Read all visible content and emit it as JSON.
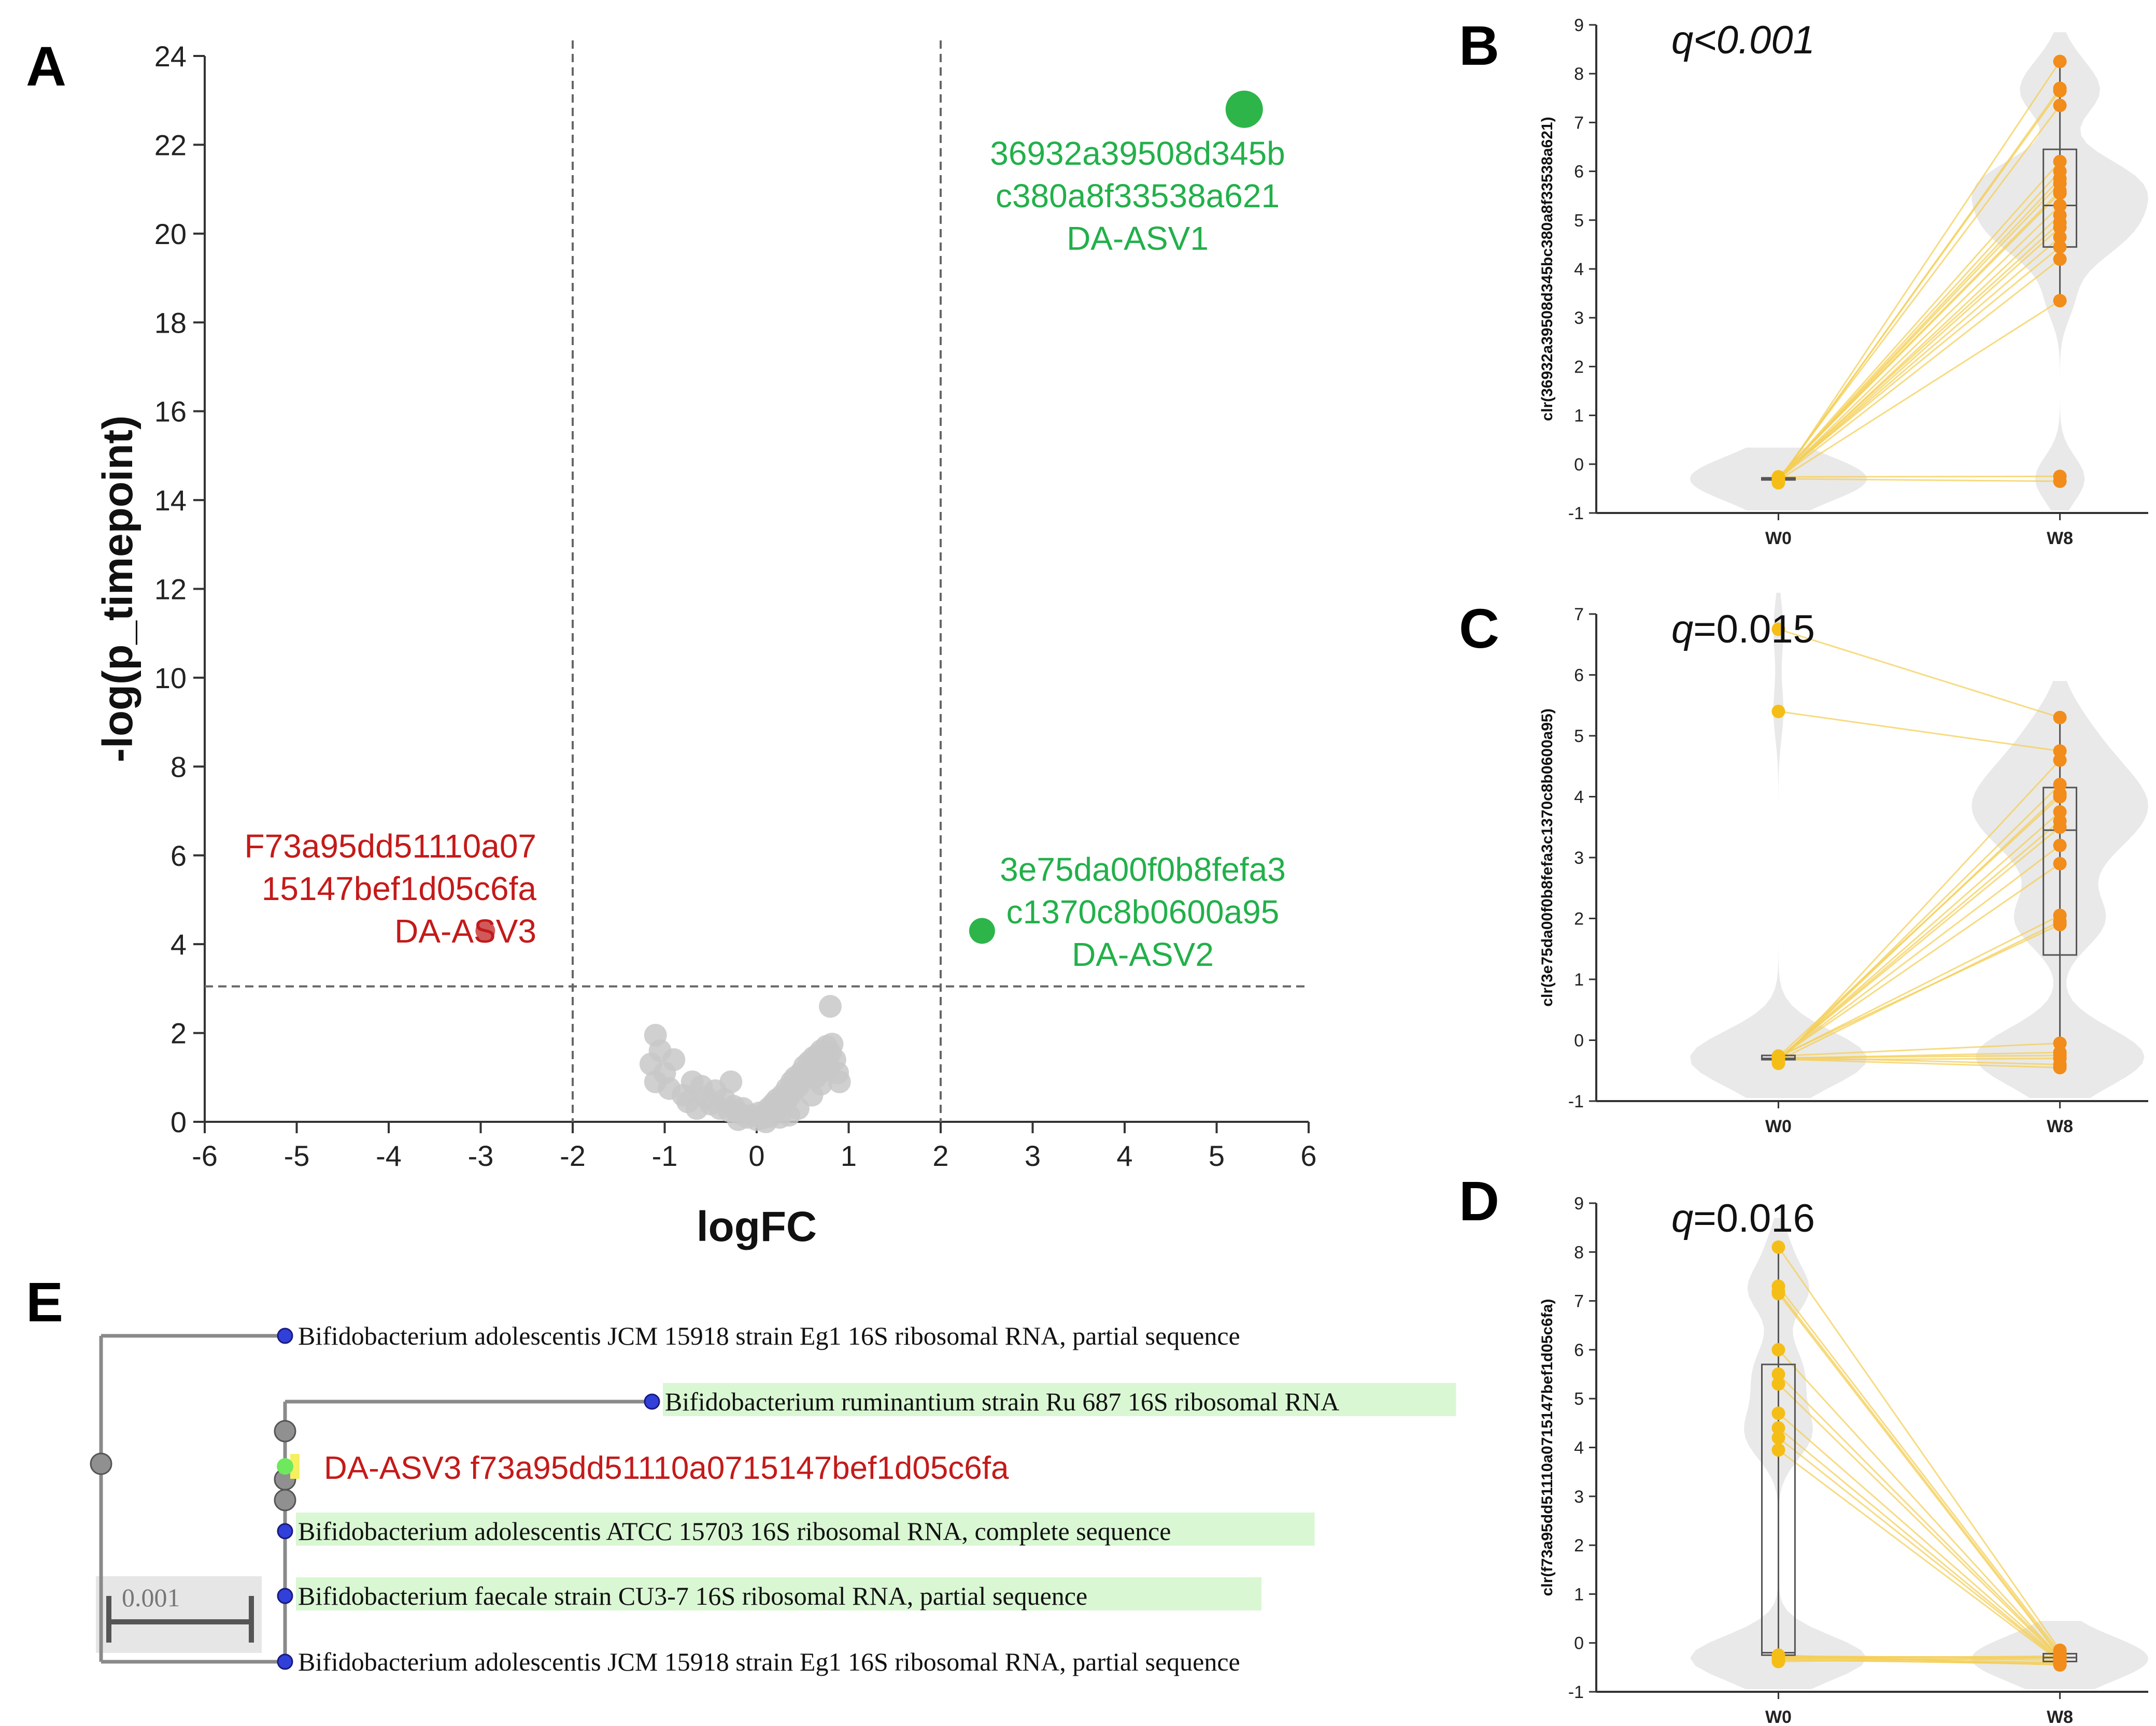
{
  "panel_letters": {
    "a": "A",
    "b": "B",
    "c": "C",
    "d": "D",
    "e": "E"
  },
  "colors": {
    "up": "#2db54a",
    "down": "#d05a5a",
    "up_text": "#22b04a",
    "down_text": "#c41a1a",
    "ns": "#c8c8c8",
    "w0_point": "#f5be17",
    "w8_point": "#f28c1a",
    "pair_line": "#f5cf57",
    "violin": "#e9e9e9",
    "box": "#555555",
    "tree_line": "#8a8a8a",
    "node_blue": "#3040d8",
    "node_grey": "#909090",
    "node_green": "#6ee85c",
    "highlight": "#d9f7d3",
    "scale_bg": "#e6e6e6"
  },
  "chart_data": [
    {
      "id": "A",
      "type": "scatter",
      "title": "",
      "xlabel": "logFC",
      "ylabel": "-log(p_timepoint)",
      "xlim": [
        -6,
        6
      ],
      "ylim": [
        0,
        24
      ],
      "xticks": [
        "-6",
        "-5",
        "-4",
        "-3",
        "-2",
        "-1",
        "0",
        "1",
        "2",
        "3",
        "4",
        "5",
        "6"
      ],
      "yticks": [
        "0",
        "2",
        "4",
        "6",
        "8",
        "10",
        "12",
        "14",
        "16",
        "18",
        "20",
        "22",
        "24"
      ],
      "thresholds": {
        "x": [
          -2,
          2
        ],
        "y": 3.05
      },
      "highlighted": [
        {
          "x": 5.3,
          "y": 22.8,
          "direction": "up",
          "size": "large",
          "label": [
            "36932a39508d345b",
            "c380a8f33538a621",
            "DA-ASV1"
          ]
        },
        {
          "x": 2.45,
          "y": 4.3,
          "direction": "up",
          "size": "medium",
          "label": [
            "3e75da00f0b8fefa3",
            "c1370c8b0600a95",
            "DA-ASV2"
          ]
        },
        {
          "x": -2.95,
          "y": 4.3,
          "direction": "down",
          "size": "small",
          "label": [
            "F73a95dd51110a07",
            "15147bef1d05c6fa",
            "DA-ASV3"
          ]
        }
      ],
      "background_points": [
        [
          -1.1,
          1.95
        ],
        [
          -1.05,
          1.6
        ],
        [
          -1.15,
          1.3
        ],
        [
          -1.0,
          1.1
        ],
        [
          -0.95,
          0.75
        ],
        [
          -1.1,
          0.9
        ],
        [
          -0.9,
          1.4
        ],
        [
          -0.8,
          0.6
        ],
        [
          -0.7,
          0.9
        ],
        [
          -0.75,
          0.45
        ],
        [
          -0.6,
          0.8
        ],
        [
          -0.55,
          0.55
        ],
        [
          -0.5,
          0.4
        ],
        [
          -0.45,
          0.7
        ],
        [
          -0.4,
          0.3
        ],
        [
          -0.35,
          0.5
        ],
        [
          -0.3,
          0.25
        ],
        [
          -0.28,
          0.9
        ],
        [
          -0.25,
          0.35
        ],
        [
          -0.2,
          0.2
        ],
        [
          -0.15,
          0.3
        ],
        [
          -0.1,
          0.1
        ],
        [
          -0.05,
          0.15
        ],
        [
          0.0,
          0.05
        ],
        [
          0.03,
          0.2
        ],
        [
          0.06,
          0.08
        ],
        [
          0.1,
          0.18
        ],
        [
          0.13,
          0.3
        ],
        [
          0.15,
          0.12
        ],
        [
          0.18,
          0.4
        ],
        [
          0.2,
          0.25
        ],
        [
          0.22,
          0.5
        ],
        [
          0.25,
          0.35
        ],
        [
          0.28,
          0.6
        ],
        [
          0.3,
          0.45
        ],
        [
          0.33,
          0.75
        ],
        [
          0.35,
          0.55
        ],
        [
          0.38,
          0.9
        ],
        [
          0.4,
          0.7
        ],
        [
          0.42,
          1.0
        ],
        [
          0.45,
          0.8
        ],
        [
          0.48,
          1.1
        ],
        [
          0.5,
          0.95
        ],
        [
          0.52,
          1.25
        ],
        [
          0.55,
          1.05
        ],
        [
          0.57,
          1.35
        ],
        [
          0.6,
          1.2
        ],
        [
          0.62,
          1.45
        ],
        [
          0.64,
          1.0
        ],
        [
          0.66,
          1.5
        ],
        [
          0.68,
          1.3
        ],
        [
          0.7,
          1.6
        ],
        [
          0.72,
          1.15
        ],
        [
          0.74,
          1.4
        ],
        [
          0.76,
          1.7
        ],
        [
          0.78,
          1.25
        ],
        [
          0.8,
          1.55
        ],
        [
          0.82,
          1.75
        ],
        [
          0.85,
          1.4
        ],
        [
          0.88,
          1.1
        ],
        [
          0.9,
          0.9
        ],
        [
          0.8,
          2.6
        ],
        [
          0.45,
          0.3
        ],
        [
          0.6,
          0.6
        ],
        [
          0.35,
          0.15
        ],
        [
          0.7,
          0.85
        ],
        [
          -0.65,
          0.3
        ],
        [
          -0.2,
          0.05
        ],
        [
          0.1,
          0.0
        ],
        [
          0.25,
          0.1
        ]
      ]
    },
    {
      "id": "B",
      "type": "scatter",
      "annotation": {
        "prefix": "q",
        "rest": "<0.001",
        "rest_italic": true
      },
      "ylabel": "clr(36932a39508d345bc380a8f33538a621)",
      "categories": [
        "W0",
        "W8"
      ],
      "ylim": [
        -1,
        9
      ],
      "yticks": [
        "-1",
        "0",
        "1",
        "2",
        "3",
        "4",
        "5",
        "6",
        "7",
        "8",
        "9"
      ],
      "box": {
        "W0": [
          -0.32,
          -0.3,
          -0.28
        ],
        "W8": [
          4.45,
          5.3,
          6.45
        ]
      },
      "whiskers": {
        "W0": [
          -0.35,
          -0.25
        ],
        "W8": [
          3.3,
          8.3
        ]
      },
      "W0": [
        -0.38,
        -0.35,
        -0.33,
        -0.31,
        -0.3,
        -0.3,
        -0.29,
        -0.28,
        -0.27,
        -0.26,
        -0.3,
        -0.32,
        -0.28,
        -0.31,
        -0.29,
        -0.27,
        -0.3,
        -0.33,
        -0.26,
        -0.3
      ],
      "W8": [
        8.25,
        7.7,
        7.65,
        7.35,
        6.2,
        6.0,
        5.85,
        5.75,
        5.6,
        5.55,
        5.3,
        5.1,
        4.95,
        4.85,
        4.65,
        4.45,
        4.2,
        3.35,
        -0.25,
        -0.35
      ]
    },
    {
      "id": "C",
      "type": "scatter",
      "annotation": {
        "prefix": "q",
        "rest": "=0.015",
        "rest_italic": false
      },
      "ylabel": "clr(3e75da00f0b8fefa3c1370c8b0600a95)",
      "categories": [
        "W0",
        "W8"
      ],
      "ylim": [
        -1,
        7
      ],
      "yticks": [
        "-1",
        "0",
        "1",
        "2",
        "3",
        "4",
        "5",
        "6",
        "7"
      ],
      "box": {
        "W0": [
          -0.32,
          -0.3,
          -0.25
        ],
        "W8": [
          1.4,
          3.45,
          4.15
        ]
      },
      "whiskers": {
        "W0": [
          -0.35,
          -0.2
        ],
        "W8": [
          -0.5,
          5.3
        ]
      },
      "W0": [
        6.75,
        5.4,
        -0.38,
        -0.35,
        -0.33,
        -0.31,
        -0.3,
        -0.3,
        -0.29,
        -0.28,
        -0.27,
        -0.26,
        -0.3,
        -0.32,
        -0.28,
        -0.31,
        -0.29,
        -0.27,
        -0.3,
        -0.33
      ],
      "W8": [
        5.3,
        4.75,
        4.6,
        4.2,
        4.05,
        3.75,
        3.5,
        3.2,
        2.9,
        2.05,
        1.9,
        -0.05,
        -0.2,
        -0.3,
        -0.4,
        -0.45,
        -0.25,
        4.0,
        3.6,
        1.95
      ]
    },
    {
      "id": "D",
      "type": "scatter",
      "annotation": {
        "prefix": "q",
        "rest": "=0.016",
        "rest_italic": false
      },
      "ylabel": "clr(f73a95dd51110a0715147bef1d05c6fa)",
      "categories": [
        "W0",
        "W8"
      ],
      "ylim": [
        -1,
        9
      ],
      "yticks": [
        "-1",
        "0",
        "1",
        "2",
        "3",
        "4",
        "5",
        "6",
        "7",
        "8",
        "9"
      ],
      "box": {
        "W0": [
          -0.25,
          -0.2,
          5.7
        ],
        "W8": [
          -0.38,
          -0.3,
          -0.22
        ]
      },
      "whiskers": {
        "W0": [
          -0.4,
          8.1
        ],
        "W8": [
          -0.45,
          -0.15
        ]
      },
      "W0": [
        8.1,
        7.3,
        7.2,
        7.15,
        6.0,
        5.5,
        5.3,
        4.7,
        4.4,
        4.2,
        3.95,
        -0.3,
        -0.35,
        -0.25,
        -0.38,
        -0.28,
        -0.32,
        -0.3,
        -0.27,
        -0.33
      ],
      "W8": [
        -0.15,
        -0.2,
        -0.25,
        -0.28,
        -0.3,
        -0.3,
        -0.32,
        -0.33,
        -0.35,
        -0.36,
        -0.38,
        -0.4,
        -0.42,
        -0.45,
        -0.3,
        -0.29,
        -0.27,
        -0.35,
        -0.31,
        -0.44
      ]
    }
  ],
  "tree": {
    "scale_label": "0.001",
    "leaves": [
      {
        "text": "Bifidobacterium adolescentis JCM 15918 strain Eg1 16S ribosomal RNA, partial sequence",
        "highlight": false,
        "query": false
      },
      {
        "text": "Bifidobacterium ruminantium strain Ru 687 16S ribosomal RNA",
        "highlight": true,
        "query": false
      },
      {
        "text": "DA-ASV3 f73a95dd51110a0715147bef1d05c6fa",
        "highlight": false,
        "query": true
      },
      {
        "text": "Bifidobacterium adolescentis ATCC 15703 16S ribosomal RNA, complete sequence",
        "highlight": true,
        "query": false
      },
      {
        "text": "Bifidobacterium faecale strain CU3-7 16S ribosomal RNA, partial sequence",
        "highlight": true,
        "query": false
      },
      {
        "text": "Bifidobacterium adolescentis JCM 15918 strain Eg1 16S ribosomal RNA, partial sequence",
        "highlight": false,
        "query": false
      }
    ]
  }
}
